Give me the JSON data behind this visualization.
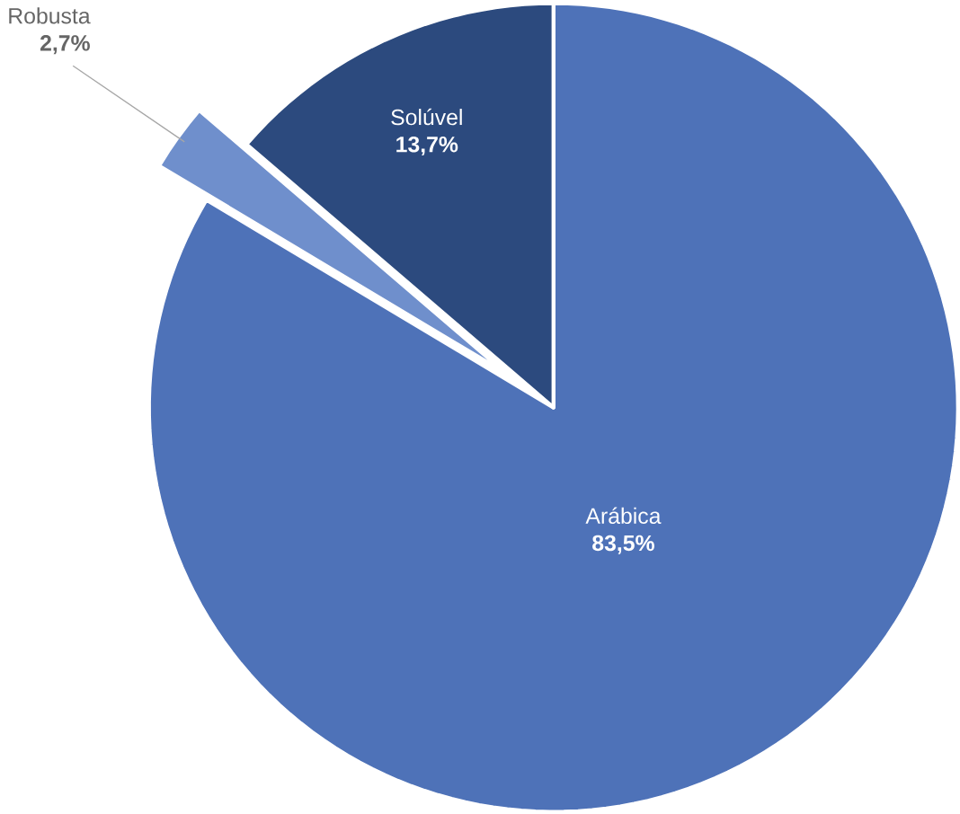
{
  "chart_data": {
    "type": "pie",
    "categories": [
      "Arábica",
      "Robusta",
      "Solúvel"
    ],
    "values": [
      83.5,
      2.7,
      13.7
    ],
    "colors": [
      "#4e72b8",
      "#6f8fcc",
      "#2c4a7e"
    ],
    "value_labels": [
      "83,5%",
      "2,7%",
      "13,7%"
    ]
  }
}
